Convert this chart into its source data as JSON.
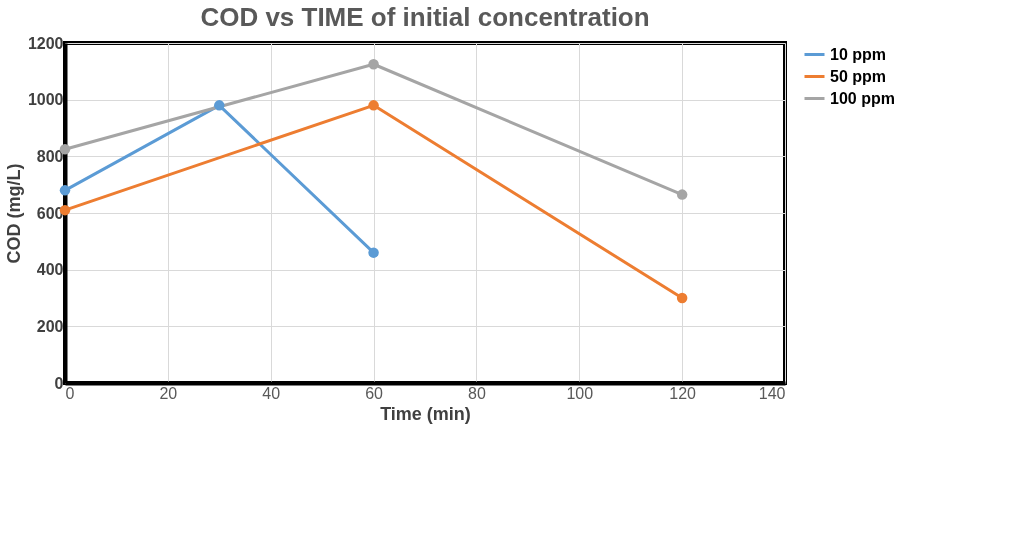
{
  "chart_data": {
    "type": "line",
    "title": "COD vs TIME of initial concentration",
    "xlabel": "Time (min)",
    "ylabel": "COD (mg/L)",
    "series": [
      {
        "name": "10 ppm",
        "color": "#5b9bd5",
        "x": [
          0,
          30,
          60
        ],
        "values": [
          680,
          980,
          460
        ]
      },
      {
        "name": "50 ppm",
        "color": "#ed7d31",
        "x": [
          0,
          60,
          120
        ],
        "values": [
          610,
          980,
          300
        ]
      },
      {
        "name": "100 ppm",
        "color": "#a5a5a5",
        "x": [
          0,
          60,
          120
        ],
        "values": [
          825,
          1125,
          665
        ]
      }
    ],
    "xlim": [
      0,
      140
    ],
    "xticks": [
      0,
      20,
      40,
      60,
      80,
      100,
      120,
      140
    ],
    "ylim": [
      0,
      1200
    ],
    "yticks": [
      0,
      200,
      400,
      600,
      800,
      1000,
      1200
    ],
    "grid": true,
    "legend": "right",
    "marker": "circle",
    "line_style": "solid"
  }
}
